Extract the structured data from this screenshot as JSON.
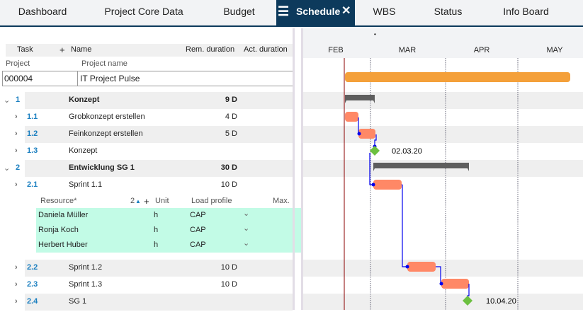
{
  "tabs": [
    {
      "label": "Dashboard"
    },
    {
      "label": "Project Core Data"
    },
    {
      "label": "Budget"
    },
    {
      "label": "Schedule",
      "active": true
    },
    {
      "label": "WBS"
    },
    {
      "label": "Status"
    },
    {
      "label": "Info Board"
    }
  ],
  "table_header": {
    "task": "Task",
    "add": "+",
    "name": "Name",
    "rem": "Rem. duration",
    "act": "Act. duration"
  },
  "project": {
    "id_label": "Project",
    "name_label": "Project name",
    "id": "000004",
    "name": "IT Project Pulse"
  },
  "rows": [
    {
      "num": "1",
      "name": "Konzept",
      "dur": "9 D",
      "summary": true
    },
    {
      "num": "1.1",
      "name": "Grobkonzept erstellen",
      "dur": "4 D"
    },
    {
      "num": "1.2",
      "name": "Feinkonzept erstellen",
      "dur": "5 D"
    },
    {
      "num": "1.3",
      "name": "Konzept",
      "dur": ""
    },
    {
      "num": "2",
      "name": "Entwicklung SG 1",
      "dur": "30 D",
      "summary": true
    },
    {
      "num": "2.1",
      "name": "Sprint 1.1",
      "dur": "10 D"
    },
    {
      "num": "2.2",
      "name": "Sprint 1.2",
      "dur": "10 D"
    },
    {
      "num": "2.3",
      "name": "Sprint 1.3",
      "dur": "10 D"
    },
    {
      "num": "2.4",
      "name": "SG 1",
      "dur": ""
    }
  ],
  "resource_header": {
    "resource": "Resource*",
    "count": "2",
    "add": "+",
    "unit": "Unit",
    "load": "Load profile",
    "max": "Max."
  },
  "resources": [
    {
      "name": "Daniela Müller",
      "unit": "h",
      "load": "CAP"
    },
    {
      "name": "Ronja Koch",
      "unit": "h",
      "load": "CAP"
    },
    {
      "name": "Herbert Huber",
      "unit": "h",
      "load": "CAP"
    }
  ],
  "gantt": {
    "months": [
      "FEB",
      "MAR",
      "APR",
      "MAY"
    ],
    "milestones": [
      "02.03.20",
      "10.04.20"
    ],
    "colors": {
      "project": "#f4a03a",
      "task": "#ff8866",
      "summary": "#5e5e5e",
      "milestone": "#6cc040",
      "link": "#0000ee",
      "today": "#8b0000"
    }
  }
}
